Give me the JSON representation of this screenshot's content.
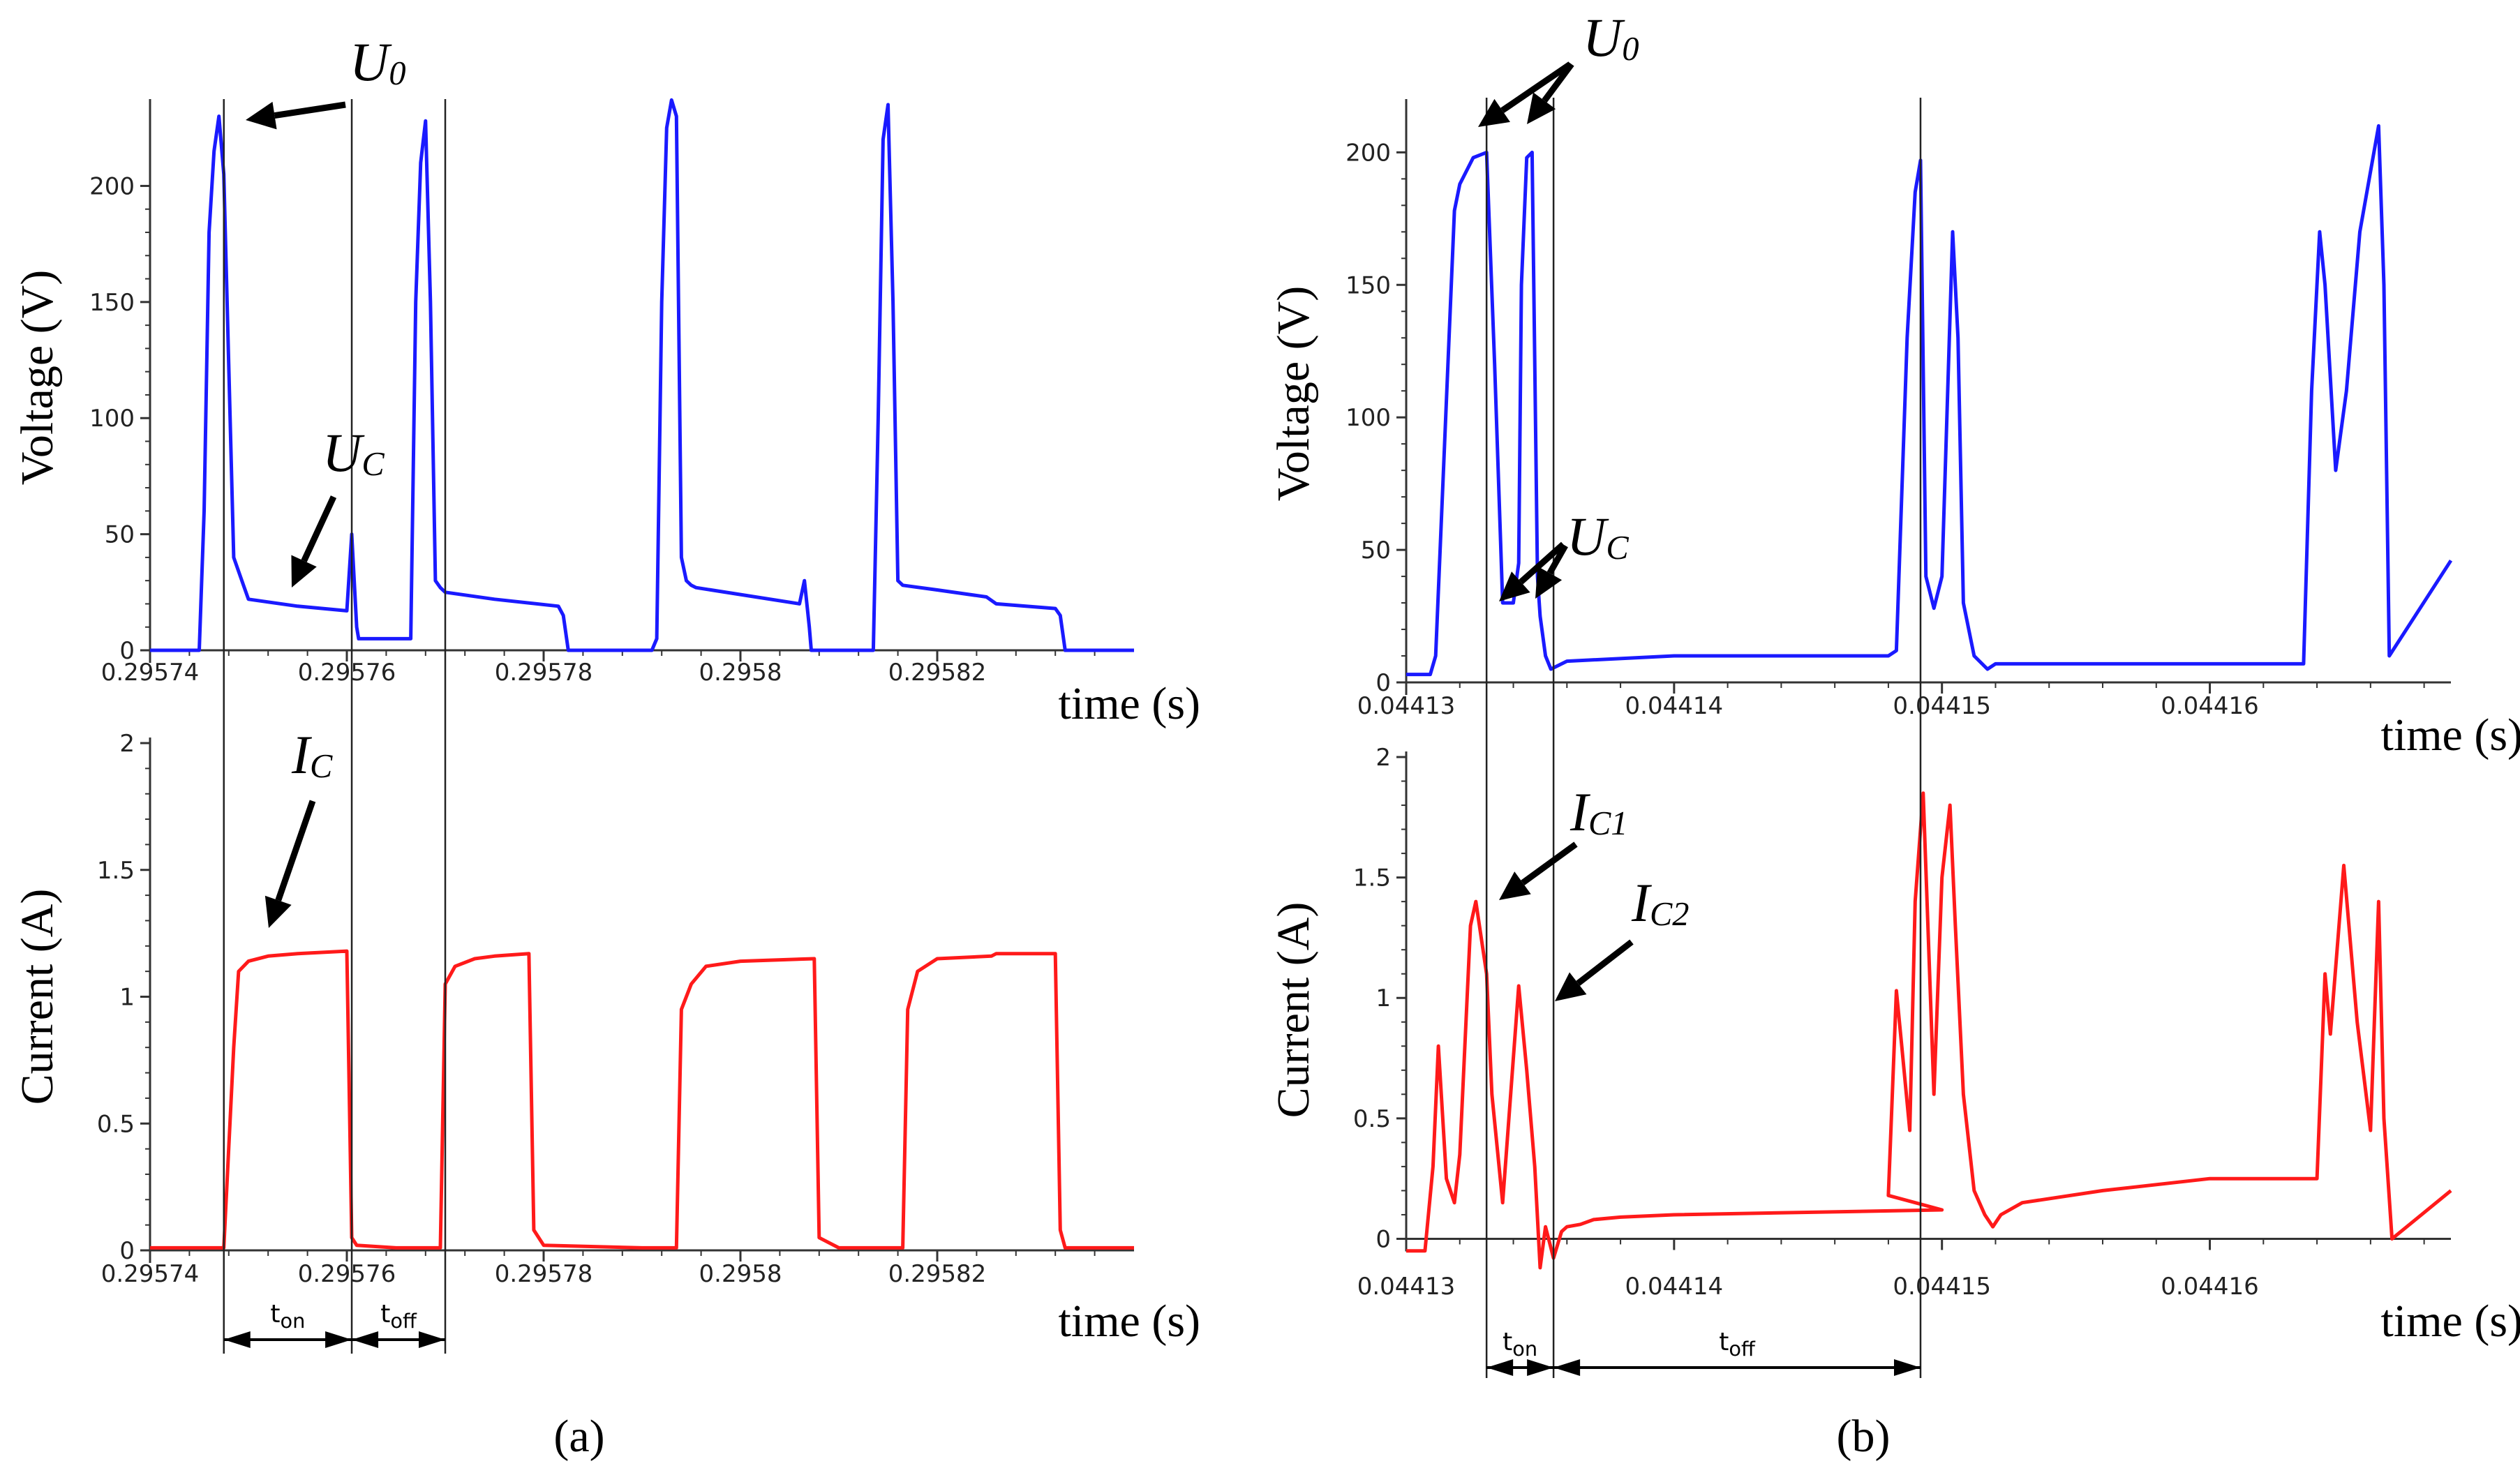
{
  "chart_data": [
    {
      "type": "line",
      "panel": "a",
      "panel_label": "(a)",
      "title": "",
      "subplots": [
        {
          "name": "voltage",
          "ylabel": "Voltage (V)",
          "xlabel": "time (s)",
          "ylim": [
            0,
            235
          ],
          "yticks": [
            "0",
            "50",
            "100",
            "150",
            "200"
          ],
          "ytick_values": [
            0,
            50,
            100,
            150,
            200
          ],
          "xlim": [
            0.29574,
            0.29584
          ],
          "xtick_values": [
            0.29574,
            0.29576,
            0.29578,
            0.2958,
            0.29582
          ],
          "xticks": [
            "0.29574",
            "0.29576",
            "0.29578",
            "0.2958",
            "0.29582"
          ],
          "color": "#1a1aff",
          "x": [
            0.29574,
            0.295744,
            0.295745,
            0.2957455,
            0.295746,
            0.2957465,
            0.295747,
            0.2957475,
            0.2957485,
            0.2957495,
            0.29575,
            0.295755,
            0.29576,
            0.2957605,
            0.295761,
            0.2957612,
            0.295763,
            0.2957665,
            0.295767,
            0.2957675,
            0.295768,
            0.2957685,
            0.295769,
            0.2957695,
            0.29577,
            0.295775,
            0.2957815,
            0.295782,
            0.2957825,
            0.29579,
            0.295791,
            0.2957915,
            0.295792,
            0.2957925,
            0.295793,
            0.2957935,
            0.295794,
            0.2957945,
            0.295795,
            0.2957955,
            0.2958,
            0.295806,
            0.2958065,
            0.295807,
            0.2958072,
            0.295808,
            0.295813,
            0.2958135,
            0.295814,
            0.2958145,
            0.295815,
            0.2958155,
            0.295816,
            0.2958165,
            0.29582,
            0.295825,
            0.295826,
            0.295832,
            0.2958325,
            0.295833,
            0.295835,
            0.29584
          ],
          "y": [
            0,
            0,
            0,
            60,
            180,
            215,
            230,
            205,
            40,
            28,
            22,
            19,
            17,
            50,
            10,
            5,
            5,
            5,
            150,
            210,
            228,
            150,
            30,
            27,
            25,
            22,
            19,
            15,
            0,
            0,
            0,
            5,
            150,
            225,
            237,
            230,
            40,
            30,
            28,
            27,
            24,
            20,
            30,
            10,
            0,
            0,
            0,
            0,
            100,
            220,
            235,
            150,
            30,
            28,
            26,
            23,
            20,
            18,
            15,
            0,
            0,
            0
          ]
        },
        {
          "name": "current",
          "ylabel": "Current (A)",
          "xlabel": "time (s)",
          "ylim": [
            0,
            2
          ],
          "yticks": [
            "0",
            "0.5",
            "1",
            "1.5",
            "2"
          ],
          "ytick_values": [
            0,
            0.5,
            1,
            1.5,
            2
          ],
          "xlim": [
            0.29574,
            0.29584
          ],
          "xtick_values": [
            0.29574,
            0.29576,
            0.29578,
            0.2958,
            0.29582
          ],
          "xticks": [
            "0.29574",
            "0.29576",
            "0.29578",
            "0.2958",
            "0.29582"
          ],
          "color": "#ff1a1a",
          "x": [
            0.29574,
            0.2957475,
            0.2957485,
            0.295749,
            0.29575,
            0.295752,
            0.295755,
            0.29576,
            0.2957605,
            0.295761,
            0.295765,
            0.2957695,
            0.29577,
            0.295771,
            0.295773,
            0.295775,
            0.2957785,
            0.295779,
            0.29578,
            0.29579,
            0.2957935,
            0.295794,
            0.295795,
            0.2957965,
            0.2958,
            0.2958075,
            0.295808,
            0.29581,
            0.2958165,
            0.295817,
            0.295818,
            0.29582,
            0.2958255,
            0.295826,
            0.295827,
            0.295832,
            0.2958325,
            0.295833,
            0.295835,
            0.29584
          ],
          "y": [
            0.01,
            0.01,
            0.8,
            1.1,
            1.14,
            1.16,
            1.17,
            1.18,
            0.05,
            0.02,
            0.01,
            0.01,
            1.05,
            1.12,
            1.15,
            1.16,
            1.17,
            0.08,
            0.02,
            0.01,
            0.01,
            0.95,
            1.05,
            1.12,
            1.14,
            1.15,
            0.05,
            0.01,
            0.01,
            0.95,
            1.1,
            1.15,
            1.16,
            1.17,
            1.17,
            1.17,
            0.08,
            0.01,
            0.01,
            0.01
          ]
        }
      ],
      "annotations": [
        {
          "base": "U",
          "sub": "0",
          "target_subplot": "voltage",
          "x": 0.2957475,
          "y": 230
        },
        {
          "base": "U",
          "sub": "C",
          "target_subplot": "voltage",
          "x": 0.295752,
          "y": 22
        },
        {
          "base": "I",
          "sub": "C",
          "target_subplot": "current",
          "x": 0.295752,
          "y": 1.16
        }
      ],
      "markers_x": [
        0.2957475,
        0.2957605,
        0.29577
      ],
      "intervals": [
        {
          "label": "t",
          "sub": "on",
          "from": 0.2957475,
          "to": 0.2957605
        },
        {
          "label": "t",
          "sub": "off",
          "from": 0.2957605,
          "to": 0.29577
        }
      ]
    },
    {
      "type": "line",
      "panel": "b",
      "panel_label": "(b)",
      "title": "",
      "subplots": [
        {
          "name": "voltage",
          "ylabel": "Voltage (V)",
          "xlabel": "time (s)",
          "ylim": [
            0,
            218
          ],
          "yticks": [
            "0",
            "50",
            "100",
            "150",
            "200"
          ],
          "ytick_values": [
            0,
            50,
            100,
            150,
            200
          ],
          "xlim": [
            0.04413,
            0.044169
          ],
          "xtick_values": [
            0.04413,
            0.04414,
            0.04415,
            0.04416
          ],
          "xticks": [
            "0.04413",
            "0.04414",
            "0.04415",
            "0.04416"
          ],
          "color": "#1a1aff",
          "x": [
            0.04413,
            0.0441309,
            0.0441311,
            0.0441316,
            0.0441318,
            0.044132,
            0.0441325,
            0.044133,
            0.0441333,
            0.0441336,
            0.044134,
            0.0441342,
            0.0441343,
            0.0441345,
            0.0441347,
            0.0441349,
            0.044135,
            0.0441352,
            0.0441354,
            0.044136,
            0.04414,
            0.044148,
            0.0441483,
            0.0441487,
            0.044149,
            0.0441492,
            0.0441494,
            0.0441497,
            0.04415,
            0.0441504,
            0.0441506,
            0.0441508,
            0.0441512,
            0.0441517,
            0.044152,
            0.04416,
            0.0441635,
            0.0441638,
            0.0441641,
            0.0441643,
            0.0441647,
            0.0441651,
            0.0441656,
            0.0441663,
            0.0441665,
            0.0441667,
            0.044169
          ],
          "y": [
            3,
            3,
            10,
            130,
            178,
            188,
            198,
            200,
            120,
            30,
            30,
            45,
            150,
            198,
            200,
            40,
            25,
            10,
            5,
            8,
            10,
            10,
            12,
            130,
            185,
            197,
            40,
            28,
            40,
            170,
            130,
            30,
            10,
            5,
            7,
            7,
            7,
            110,
            170,
            150,
            80,
            110,
            170,
            210,
            150,
            10,
            46
          ]
        },
        {
          "name": "current",
          "ylabel": "Current (A)",
          "xlabel": "time (s)",
          "ylim": [
            -0.1,
            2
          ],
          "yticks": [
            "0",
            "0.5",
            "1",
            "1.5",
            "2"
          ],
          "ytick_values": [
            0,
            0.5,
            1,
            1.5,
            2
          ],
          "xlim": [
            0.04413,
            0.044169
          ],
          "xtick_values": [
            0.04413,
            0.04414,
            0.04415,
            0.04416
          ],
          "xticks": [
            "0.04413",
            "0.04414",
            "0.04415",
            "0.04416"
          ],
          "color": "#ff1a1a",
          "x": [
            0.04413,
            0.0441307,
            0.044131,
            0.0441312,
            0.0441315,
            0.0441318,
            0.044132,
            0.0441324,
            0.0441326,
            0.044133,
            0.0441332,
            0.0441336,
            0.0441339,
            0.0441342,
            0.0441345,
            0.0441348,
            0.044135,
            0.0441352,
            0.0441355,
            0.0441358,
            0.044136,
            0.0441365,
            0.044137,
            0.044138,
            0.04414,
            0.04415,
            0.044148,
            0.0441483,
            0.0441485,
            0.0441488,
            0.044149,
            0.0441493,
            0.0441497,
            0.04415,
            0.0441503,
            0.0441505,
            0.0441508,
            0.0441512,
            0.0441516,
            0.0441519,
            0.0441522,
            0.044153,
            0.044156,
            0.04416,
            0.044164,
            0.0441643,
            0.0441645,
            0.044165,
            0.0441655,
            0.044166,
            0.0441663,
            0.0441665,
            0.0441668,
            0.044169
          ],
          "y": [
            -0.05,
            -0.05,
            0.3,
            0.8,
            0.25,
            0.15,
            0.35,
            1.3,
            1.4,
            1.1,
            0.6,
            0.15,
            0.6,
            1.05,
            0.7,
            0.3,
            -0.12,
            0.05,
            -0.08,
            0.03,
            0.05,
            0.06,
            0.08,
            0.09,
            0.1,
            0.12,
            0.18,
            1.03,
            0.8,
            0.45,
            1.4,
            1.85,
            0.6,
            1.5,
            1.8,
            1.3,
            0.6,
            0.2,
            0.1,
            0.05,
            0.1,
            0.15,
            0.2,
            0.25,
            0.25,
            1.1,
            0.85,
            1.55,
            0.9,
            0.45,
            1.4,
            0.5,
            0,
            0.2
          ]
        }
      ],
      "annotations": [
        {
          "base": "U",
          "sub": "0",
          "target_subplot": "voltage",
          "x": 0.044133,
          "y": 200
        },
        {
          "base": "U",
          "sub": "C",
          "target_subplot": "voltage",
          "x": 0.0441336,
          "y": 30
        },
        {
          "base": "I",
          "sub": "C1",
          "target_subplot": "current",
          "x": 0.0441326,
          "y": 1.4
        },
        {
          "base": "I",
          "sub": "C2",
          "target_subplot": "current",
          "x": 0.0441345,
          "y": 1.05
        }
      ],
      "markers_x": [
        0.044133,
        0.0441355,
        0.0441492
      ],
      "intervals": [
        {
          "label": "t",
          "sub": "on",
          "from": 0.044133,
          "to": 0.0441355
        },
        {
          "label": "t",
          "sub": "off",
          "from": 0.0441355,
          "to": 0.0441492
        }
      ]
    }
  ]
}
